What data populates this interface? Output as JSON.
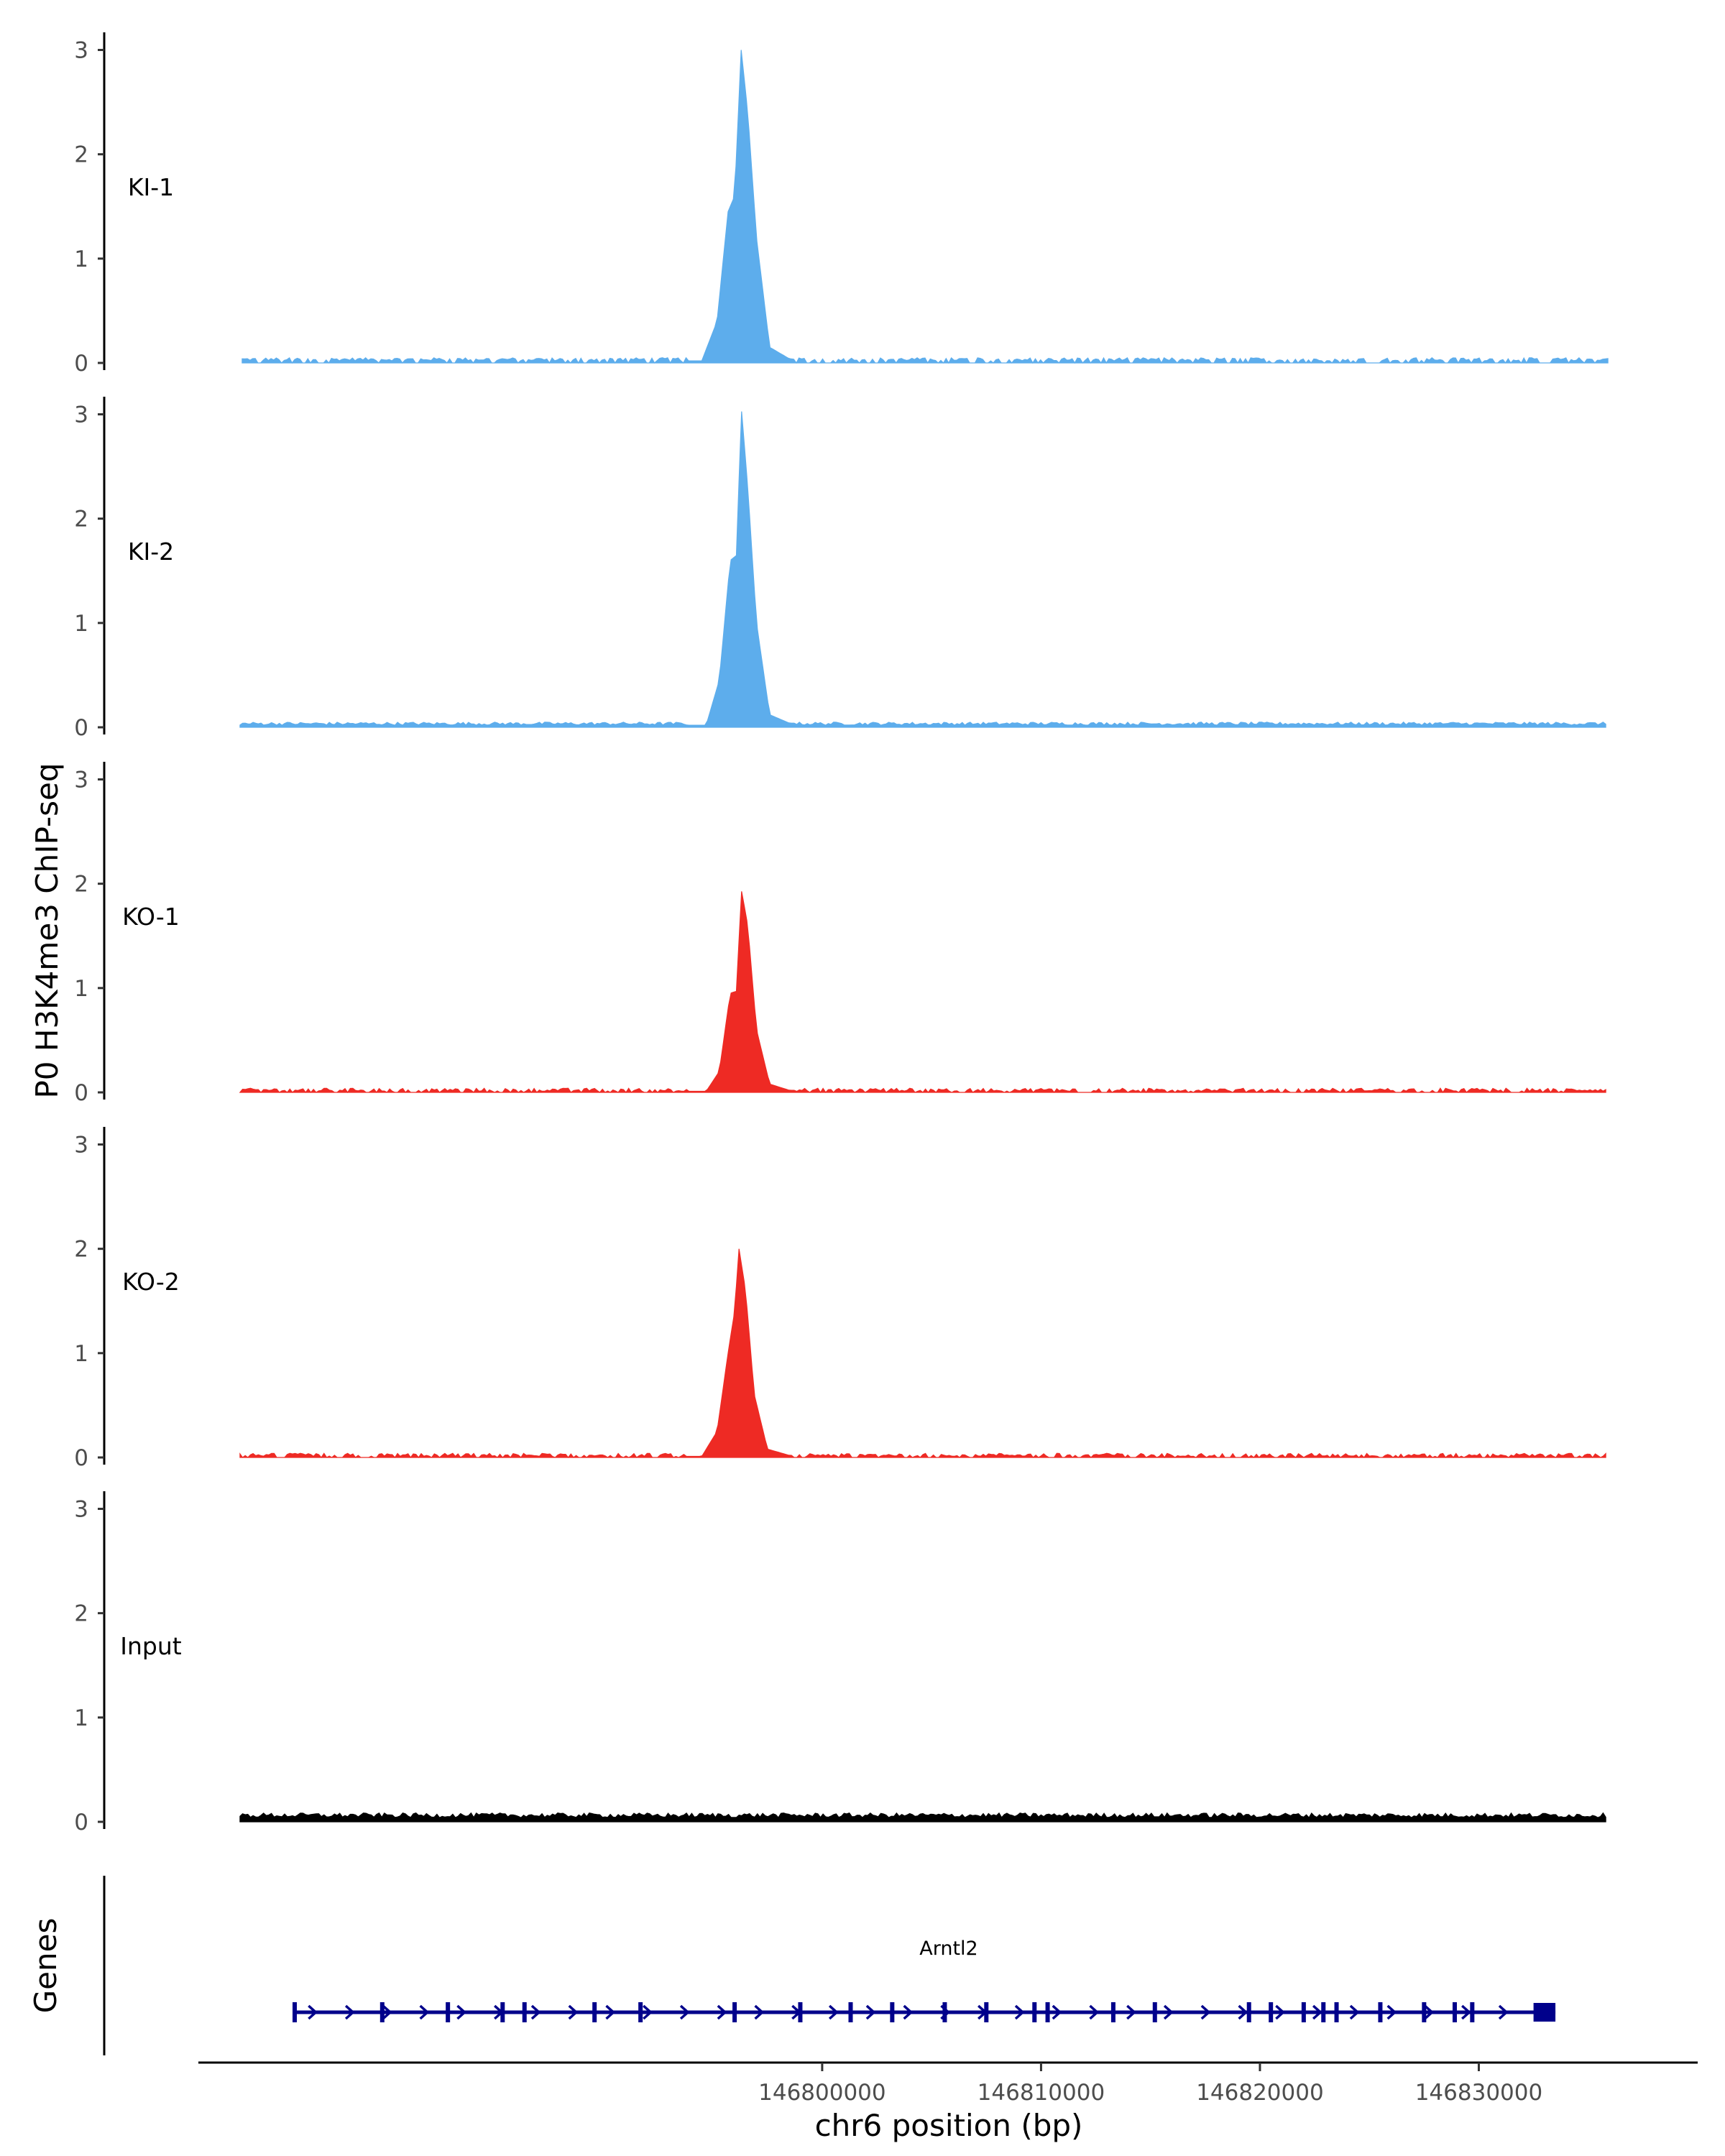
{
  "chart_data": {
    "type": "area",
    "ylabel": "P0 H3K4me3 ChIP-seq",
    "xlabel": "chr6 position (bp)",
    "xlim": [
      146771500,
      146840000
    ],
    "ylim": [
      0,
      3.1
    ],
    "y_ticks": [
      0,
      1,
      2,
      3
    ],
    "x_ticks": [
      146800000,
      146810000,
      146820000,
      146830000
    ],
    "x_tick_labels": [
      "146800000",
      "146810000",
      "146820000",
      "146830000"
    ],
    "colors": {
      "KI": "#5DADEC",
      "KO": "#EE2A24",
      "Input": "#000000",
      "gene": "#00008B"
    },
    "tracks": [
      {
        "name": "KI-1",
        "color": "#5DADEC",
        "peak": {
          "center": 146796300,
          "height": 3.0,
          "shoulder": 1.4
        },
        "data_start": 146773500,
        "data_end": 146835900,
        "baseline": 0.02,
        "gappy": true,
        "x": [
          146773500,
          146794500,
          146795200,
          146795700,
          146796000,
          146796300,
          146796600,
          146797000,
          146797600,
          146798500,
          146799500,
          146835900
        ],
        "y": [
          0.02,
          0.02,
          0.4,
          1.45,
          1.6,
          3.0,
          2.4,
          1.2,
          0.15,
          0.04,
          0.02,
          0.02
        ]
      },
      {
        "name": "KI-2",
        "color": "#5DADEC",
        "peak": {
          "center": 146796300,
          "height": 3.08,
          "shoulder": 1.6
        },
        "data_start": 146773400,
        "data_end": 146835900,
        "baseline": 0.02,
        "gappy": false,
        "x": [
          146773400,
          146794700,
          146795300,
          146795800,
          146796100,
          146796300,
          146796600,
          146797000,
          146797600,
          146798500,
          146835900
        ],
        "y": [
          0.02,
          0.02,
          0.45,
          1.6,
          1.65,
          3.08,
          2.3,
          1.0,
          0.12,
          0.04,
          0.02
        ]
      },
      {
        "name": "KO-1",
        "color": "#EE2A24",
        "peak": {
          "center": 146796300,
          "height": 1.95,
          "shoulder": 0.97
        },
        "data_start": 146773400,
        "data_end": 146835900,
        "baseline": 0.01,
        "gappy": true,
        "x": [
          146773400,
          146794700,
          146795300,
          146795800,
          146796100,
          146796300,
          146796600,
          146797000,
          146797600,
          146798500,
          146835900
        ],
        "y": [
          0.01,
          0.01,
          0.2,
          0.95,
          0.97,
          1.95,
          1.6,
          0.6,
          0.08,
          0.02,
          0.01
        ]
      },
      {
        "name": "KO-2",
        "color": "#EE2A24",
        "peak": {
          "center": 146796200,
          "height": 2.0,
          "shoulder": 1.2
        },
        "data_start": 146773400,
        "data_end": 146835900,
        "baseline": 0.01,
        "gappy": true,
        "x": [
          146773400,
          146794500,
          146795200,
          146795700,
          146796000,
          146796200,
          146796500,
          146796900,
          146797500,
          146798500,
          146835900
        ],
        "y": [
          0.01,
          0.01,
          0.25,
          1.0,
          1.4,
          2.0,
          1.6,
          0.6,
          0.08,
          0.02,
          0.01
        ]
      },
      {
        "name": "Input",
        "color": "#000000",
        "peak": null,
        "data_start": 146773400,
        "data_end": 146835900,
        "baseline": 0.04,
        "gappy": false,
        "x": [
          146773400,
          146835900
        ],
        "y": [
          0.04,
          0.04
        ]
      }
    ],
    "gene_track": {
      "label": "Genes",
      "gene_name": "Arntl2",
      "strand": "+",
      "start": 146775900,
      "end": 146833500,
      "utr_end_block": [
        146832500,
        146833500
      ],
      "exons": [
        146775900,
        146779900,
        146780600,
        146782900,
        146785400,
        146786400,
        146789600,
        146789800,
        146791700,
        146796000,
        146799000,
        146800000,
        146801300,
        146802500,
        146803200,
        146803900,
        146806300,
        146807400,
        146808000,
        146809500,
        146810300
      ]
    }
  }
}
